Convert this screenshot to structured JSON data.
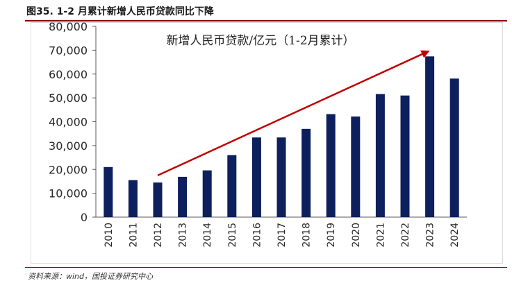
{
  "figure_title": "图35. 1-2 月累计新增人民币贷款同比下降",
  "source": "资料来源：wind，国投证券研究中心",
  "colors": {
    "bar": "#0d1f5c",
    "arrow": "#c00000",
    "rule": "#8b0000"
  },
  "chart_data": {
    "type": "bar",
    "title": "新增人民币贷款/亿元（1-2月累计）",
    "xlabel": "",
    "ylabel": "",
    "ylim": [
      0,
      80000
    ],
    "yticks": [
      0,
      10000,
      20000,
      30000,
      40000,
      50000,
      60000,
      70000,
      80000
    ],
    "ytick_labels": [
      "0",
      "10,000",
      "20,000",
      "30,000",
      "40,000",
      "50,000",
      "60,000",
      "70,000",
      "80,000"
    ],
    "grid": false,
    "categories": [
      "2010",
      "2011",
      "2012",
      "2013",
      "2014",
      "2015",
      "2016",
      "2017",
      "2018",
      "2019",
      "2020",
      "2021",
      "2022",
      "2023",
      "2024"
    ],
    "values": [
      21000,
      15500,
      14500,
      16900,
      19600,
      26000,
      33400,
      33400,
      37000,
      43200,
      42200,
      51600,
      51000,
      67400,
      58100
    ],
    "annotation": {
      "type": "arrow",
      "from_category": "2012",
      "from_value": 17500,
      "to_category": "2023",
      "to_value": 69800
    }
  }
}
